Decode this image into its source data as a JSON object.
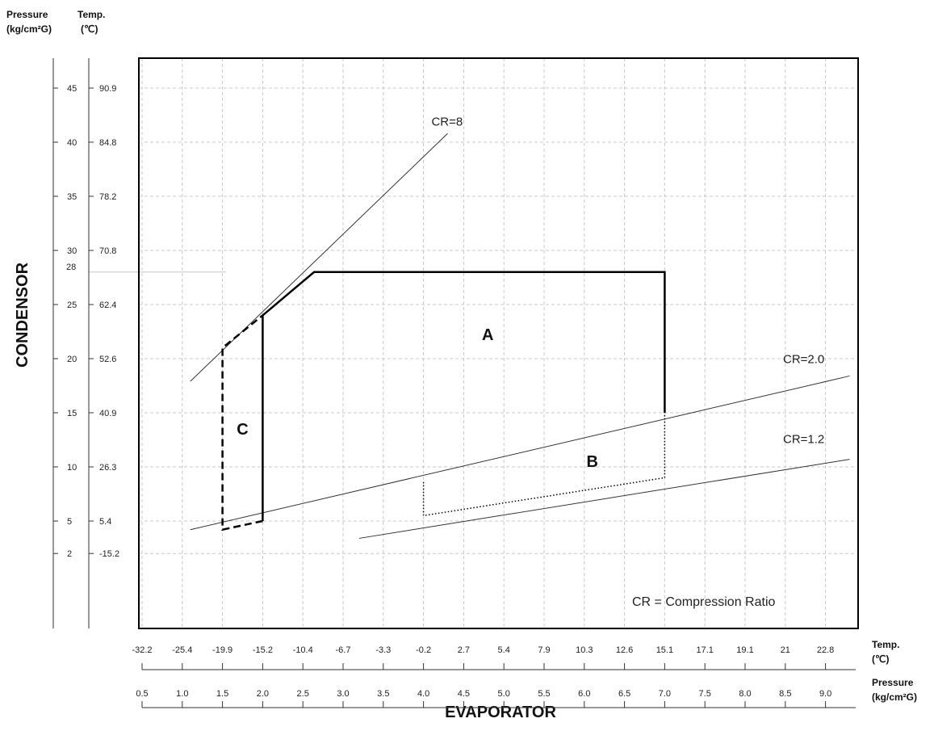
{
  "chart_data": {
    "type": "line",
    "title": "",
    "left_axis": {
      "header_pressure": "Pressure",
      "header_pressure_unit": "(kg/cm²G)",
      "header_temp": "Temp.",
      "header_temp_unit": "(℃)",
      "title": "CONDENSOR",
      "ticks": [
        {
          "pressure": "45",
          "temp": "90.9"
        },
        {
          "pressure": "40",
          "temp": "84.8"
        },
        {
          "pressure": "35",
          "temp": "78.2"
        },
        {
          "pressure": "30",
          "temp": "70.8"
        },
        {
          "pressure": "28",
          "temp": ""
        },
        {
          "pressure": "25",
          "temp": "62.4"
        },
        {
          "pressure": "20",
          "temp": "52.6"
        },
        {
          "pressure": "15",
          "temp": "40.9"
        },
        {
          "pressure": "10",
          "temp": "26.3"
        },
        {
          "pressure": "5",
          "temp": "5.4"
        },
        {
          "pressure": "2",
          "temp": "-15.2"
        }
      ]
    },
    "bottom_axis": {
      "title": "EVAPORATOR",
      "temp_label": "Temp.",
      "temp_unit": "(℃)",
      "pressure_label": "Pressure",
      "pressure_unit": "(kg/cm²G)",
      "temp_ticks": [
        "-32.2",
        "-25.4",
        "-19.9",
        "-15.2",
        "-10.4",
        "-6.7",
        "-3.3",
        "-0.2",
        "2.7",
        "5.4",
        "7.9",
        "10.3",
        "12.6",
        "15.1",
        "17.1",
        "19.1",
        "21",
        "22.8"
      ],
      "pressure_ticks": [
        "0.5",
        "1.0",
        "1.5",
        "2.0",
        "2.5",
        "3.0",
        "3.5",
        "4.0",
        "4.5",
        "5.0",
        "5.5",
        "6.0",
        "6.5",
        "7.0",
        "7.5",
        "8.0",
        "8.5",
        "9.0"
      ]
    },
    "lines": [
      {
        "name": "CR=8",
        "points": [
          [
            1.1,
            17.9
          ],
          [
            4.3,
            40.8
          ]
        ]
      },
      {
        "name": "CR=2.0",
        "points": [
          [
            1.1,
            4.2
          ],
          [
            9.3,
            18.4
          ]
        ]
      },
      {
        "name": "CR=1.2",
        "points": [
          [
            3.2,
            3.4
          ],
          [
            9.3,
            10.7
          ]
        ]
      }
    ],
    "regions": [
      {
        "name": "A",
        "label_at": [
          4.8,
          21.7
        ],
        "style": "solid",
        "points": [
          [
            2.0,
            5.0
          ],
          [
            2.0,
            24.0
          ],
          [
            2.64,
            28.0
          ],
          [
            7.0,
            28.0
          ],
          [
            7.0,
            15.0
          ]
        ]
      },
      {
        "name": "B",
        "label_at": [
          6.1,
          10.0
        ],
        "style": "dotted",
        "points": [
          [
            4.0,
            8.6
          ],
          [
            4.0,
            5.5
          ],
          [
            7.0,
            9.0
          ],
          [
            7.0,
            15.0
          ]
        ]
      },
      {
        "name": "C",
        "label_at": [
          1.75,
          13.0
        ],
        "style": "dashed",
        "points": [
          [
            2.0,
            5.0
          ],
          [
            1.5,
            4.2
          ],
          [
            1.5,
            21.0
          ],
          [
            2.0,
            24.0
          ]
        ]
      }
    ],
    "note": "CR =  Compression Ratio",
    "grid": true,
    "xlim": [
      0.5,
      9.0
    ],
    "ylim": [
      -5.0,
      47.0
    ]
  }
}
